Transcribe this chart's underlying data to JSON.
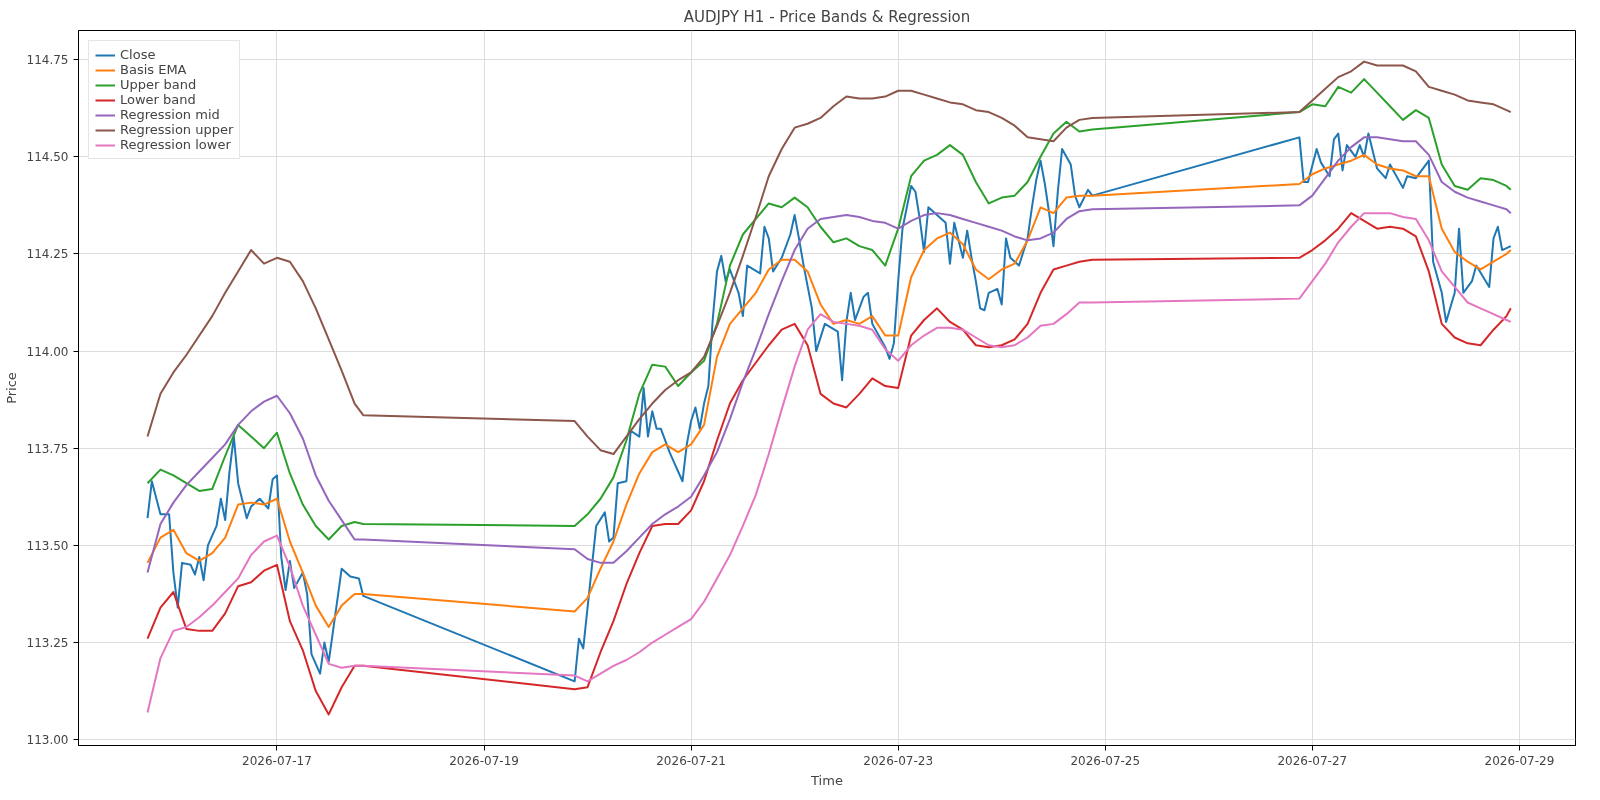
{
  "chart_data": {
    "type": "line",
    "title": "AUDJPY H1 - Price Bands & Regression",
    "xlabel": "Time",
    "ylabel": "Price",
    "xlim": [
      "2026-07-15T02:00",
      "2026-07-29T13:00"
    ],
    "ylim": [
      112.985,
      114.825
    ],
    "xticks": [
      "2026-07-17",
      "2026-07-19",
      "2026-07-21",
      "2026-07-23",
      "2026-07-25",
      "2026-07-27",
      "2026-07-29"
    ],
    "yticks": [
      {
        "value": 113.0,
        "label": "113.00"
      },
      {
        "value": 113.25,
        "label": "113.25"
      },
      {
        "value": 113.5,
        "label": "113.50"
      },
      {
        "value": 113.75,
        "label": "113.75"
      },
      {
        "value": 114.0,
        "label": "114.00"
      },
      {
        "value": 114.25,
        "label": "114.25"
      },
      {
        "value": 114.5,
        "label": "114.50"
      },
      {
        "value": 114.75,
        "label": "114.75"
      }
    ],
    "grid": true,
    "legend": "top left",
    "line_style": "solid",
    "x": [
      "2026-07-15T18:00",
      "2026-07-15T21:00",
      "2026-07-16T00:00",
      "2026-07-16T03:00",
      "2026-07-16T06:00",
      "2026-07-16T09:00",
      "2026-07-16T12:00",
      "2026-07-16T15:00",
      "2026-07-16T18:00",
      "2026-07-16T21:00",
      "2026-07-17T00:00",
      "2026-07-17T03:00",
      "2026-07-17T06:00",
      "2026-07-17T09:00",
      "2026-07-17T12:00",
      "2026-07-17T15:00",
      "2026-07-17T18:00",
      "2026-07-17T20:00",
      "2026-07-19T21:00",
      "2026-07-20T00:00",
      "2026-07-20T03:00",
      "2026-07-20T06:00",
      "2026-07-20T09:00",
      "2026-07-20T12:00",
      "2026-07-20T15:00",
      "2026-07-20T18:00",
      "2026-07-20T21:00",
      "2026-07-21T00:00",
      "2026-07-21T03:00",
      "2026-07-21T06:00",
      "2026-07-21T09:00",
      "2026-07-21T12:00",
      "2026-07-21T15:00",
      "2026-07-21T18:00",
      "2026-07-21T21:00",
      "2026-07-22T00:00",
      "2026-07-22T03:00",
      "2026-07-22T06:00",
      "2026-07-22T09:00",
      "2026-07-22T12:00",
      "2026-07-22T15:00",
      "2026-07-22T18:00",
      "2026-07-22T21:00",
      "2026-07-23T00:00",
      "2026-07-23T03:00",
      "2026-07-23T06:00",
      "2026-07-23T09:00",
      "2026-07-23T12:00",
      "2026-07-23T15:00",
      "2026-07-23T18:00",
      "2026-07-23T21:00",
      "2026-07-24T00:00",
      "2026-07-24T03:00",
      "2026-07-24T06:00",
      "2026-07-24T09:00",
      "2026-07-24T12:00",
      "2026-07-24T15:00",
      "2026-07-24T18:00",
      "2026-07-24T21:00",
      "2026-07-26T21:00",
      "2026-07-27T00:00",
      "2026-07-27T03:00",
      "2026-07-27T06:00",
      "2026-07-27T09:00",
      "2026-07-27T12:00",
      "2026-07-27T15:00",
      "2026-07-27T18:00",
      "2026-07-27T21:00",
      "2026-07-28T00:00",
      "2026-07-28T03:00",
      "2026-07-28T06:00",
      "2026-07-28T09:00",
      "2026-07-28T12:00",
      "2026-07-28T15:00",
      "2026-07-28T18:00",
      "2026-07-28T21:00",
      "2026-07-28T22:00"
    ],
    "series": [
      {
        "name": "Close",
        "color": "#1f77b4",
        "x": [
          "2026-07-15T18:00",
          "2026-07-15T19:00",
          "2026-07-15T21:00",
          "2026-07-15T23:00",
          "2026-07-16T00:00",
          "2026-07-16T01:00",
          "2026-07-16T02:00",
          "2026-07-16T04:00",
          "2026-07-16T05:00",
          "2026-07-16T06:00",
          "2026-07-16T07:00",
          "2026-07-16T08:00",
          "2026-07-16T10:00",
          "2026-07-16T11:00",
          "2026-07-16T12:00",
          "2026-07-16T13:00",
          "2026-07-16T14:00",
          "2026-07-16T15:00",
          "2026-07-16T17:00",
          "2026-07-16T18:00",
          "2026-07-16T20:00",
          "2026-07-16T22:00",
          "2026-07-16T23:00",
          "2026-07-17T00:00",
          "2026-07-17T01:00",
          "2026-07-17T02:00",
          "2026-07-17T03:00",
          "2026-07-17T04:00",
          "2026-07-17T06:00",
          "2026-07-17T07:00",
          "2026-07-17T08:00",
          "2026-07-17T10:00",
          "2026-07-17T11:00",
          "2026-07-17T12:00",
          "2026-07-17T14:00",
          "2026-07-17T15:00",
          "2026-07-17T17:00",
          "2026-07-17T19:00",
          "2026-07-17T20:00",
          "2026-07-19T21:00",
          "2026-07-19T22:00",
          "2026-07-19T23:00",
          "2026-07-20T02:00",
          "2026-07-20T04:00",
          "2026-07-20T05:00",
          "2026-07-20T06:00",
          "2026-07-20T07:00",
          "2026-07-20T09:00",
          "2026-07-20T10:00",
          "2026-07-20T12:00",
          "2026-07-20T13:00",
          "2026-07-20T14:00",
          "2026-07-20T15:00",
          "2026-07-20T16:00",
          "2026-07-20T17:00",
          "2026-07-20T19:00",
          "2026-07-20T20:00",
          "2026-07-20T22:00",
          "2026-07-20T23:00",
          "2026-07-21T00:00",
          "2026-07-21T01:00",
          "2026-07-21T02:00",
          "2026-07-21T03:00",
          "2026-07-21T04:00",
          "2026-07-21T05:00",
          "2026-07-21T06:00",
          "2026-07-21T07:00",
          "2026-07-21T08:00",
          "2026-07-21T09:00",
          "2026-07-21T11:00",
          "2026-07-21T12:00",
          "2026-07-21T13:00",
          "2026-07-21T16:00",
          "2026-07-21T17:00",
          "2026-07-21T18:00",
          "2026-07-21T19:00",
          "2026-07-21T21:00",
          "2026-07-21T23:00",
          "2026-07-22T00:00",
          "2026-07-22T01:00",
          "2026-07-22T02:00",
          "2026-07-22T04:00",
          "2026-07-22T05:00",
          "2026-07-22T07:00",
          "2026-07-22T10:00",
          "2026-07-22T11:00",
          "2026-07-22T12:00",
          "2026-07-22T13:00",
          "2026-07-22T14:00",
          "2026-07-22T16:00",
          "2026-07-22T17:00",
          "2026-07-22T18:00",
          "2026-07-22T21:00",
          "2026-07-22T22:00",
          "2026-07-22T23:00",
          "2026-07-23T00:00",
          "2026-07-23T01:00",
          "2026-07-23T03:00",
          "2026-07-23T04:00",
          "2026-07-23T05:00",
          "2026-07-23T06:00",
          "2026-07-23T07:00",
          "2026-07-23T11:00",
          "2026-07-23T12:00",
          "2026-07-23T13:00",
          "2026-07-23T15:00",
          "2026-07-23T16:00",
          "2026-07-23T17:00",
          "2026-07-23T18:00",
          "2026-07-23T19:00",
          "2026-07-23T20:00",
          "2026-07-23T21:00",
          "2026-07-23T23:00",
          "2026-07-24T00:00",
          "2026-07-24T01:00",
          "2026-07-24T02:00",
          "2026-07-24T04:00",
          "2026-07-24T06:00",
          "2026-07-24T07:00",
          "2026-07-24T08:00",
          "2026-07-24T09:00",
          "2026-07-24T10:00",
          "2026-07-24T11:00",
          "2026-07-24T12:00",
          "2026-07-24T13:00",
          "2026-07-24T14:00",
          "2026-07-24T16:00",
          "2026-07-24T17:00",
          "2026-07-24T18:00",
          "2026-07-24T20:00",
          "2026-07-24T21:00",
          "2026-07-26T21:00",
          "2026-07-26T22:00",
          "2026-07-26T23:00",
          "2026-07-27T01:00",
          "2026-07-27T02:00",
          "2026-07-27T04:00",
          "2026-07-27T05:00",
          "2026-07-27T06:00",
          "2026-07-27T07:00",
          "2026-07-27T08:00",
          "2026-07-27T10:00",
          "2026-07-27T11:00",
          "2026-07-27T12:00",
          "2026-07-27T13:00",
          "2026-07-27T15:00",
          "2026-07-27T17:00",
          "2026-07-27T18:00",
          "2026-07-27T21:00",
          "2026-07-27T22:00",
          "2026-07-28T00:00",
          "2026-07-28T03:00",
          "2026-07-28T04:00",
          "2026-07-28T06:00",
          "2026-07-28T07:00",
          "2026-07-28T09:00",
          "2026-07-28T10:00",
          "2026-07-28T11:00",
          "2026-07-28T13:00",
          "2026-07-28T14:00",
          "2026-07-28T17:00",
          "2026-07-28T18:00",
          "2026-07-28T19:00",
          "2026-07-28T20:00",
          "2026-07-28T22:00"
        ],
        "values": [
          113.57,
          113.665,
          113.58,
          113.58,
          113.43,
          113.34,
          113.455,
          113.45,
          113.425,
          113.47,
          113.41,
          113.5,
          113.55,
          113.62,
          113.565,
          113.69,
          113.78,
          113.66,
          113.57,
          113.6,
          113.62,
          113.595,
          113.67,
          113.68,
          113.47,
          113.385,
          113.46,
          113.39,
          113.43,
          113.375,
          113.22,
          113.17,
          113.25,
          113.2,
          113.36,
          113.44,
          113.42,
          113.415,
          113.37,
          113.15,
          113.26,
          113.235,
          113.55,
          113.585,
          113.51,
          113.52,
          113.66,
          113.665,
          113.795,
          113.78,
          113.905,
          113.78,
          113.845,
          113.8,
          113.8,
          113.74,
          113.715,
          113.665,
          113.76,
          113.82,
          113.855,
          113.8,
          113.865,
          113.91,
          114.08,
          114.205,
          114.245,
          114.18,
          114.21,
          114.15,
          114.09,
          114.22,
          114.2,
          114.32,
          114.29,
          114.205,
          114.24,
          114.3,
          114.35,
          114.29,
          114.225,
          114.11,
          114.0,
          114.07,
          114.05,
          113.925,
          114.075,
          114.15,
          114.08,
          114.14,
          114.15,
          114.07,
          114.01,
          113.98,
          114.02,
          114.18,
          114.315,
          114.425,
          114.41,
          114.34,
          114.255,
          114.37,
          114.33,
          114.225,
          114.33,
          114.24,
          114.31,
          114.24,
          114.18,
          114.11,
          114.105,
          114.15,
          114.16,
          114.12,
          114.29,
          114.24,
          114.22,
          114.29,
          114.37,
          114.44,
          114.49,
          114.43,
          114.355,
          114.27,
          114.41,
          114.52,
          114.48,
          114.4,
          114.37,
          114.415,
          114.4,
          114.55,
          114.435,
          114.435,
          114.52,
          114.485,
          114.45,
          114.545,
          114.56,
          114.465,
          114.53,
          114.5,
          114.53,
          114.5,
          114.56,
          114.47,
          114.445,
          114.48,
          114.42,
          114.45,
          114.445,
          114.49,
          114.23,
          114.15,
          114.075,
          114.15,
          114.315,
          114.15,
          114.18,
          114.22,
          114.165,
          114.29,
          114.32,
          114.26,
          114.27
        ]
      },
      {
        "name": "Basis EMA",
        "color": "#ff7f0e",
        "values": [
          113.455,
          113.52,
          113.54,
          113.48,
          113.46,
          113.48,
          113.52,
          113.605,
          113.61,
          113.605,
          113.62,
          113.51,
          113.43,
          113.345,
          113.29,
          113.345,
          113.375,
          113.375,
          113.33,
          113.365,
          113.44,
          113.51,
          113.605,
          113.685,
          113.74,
          113.76,
          113.74,
          113.76,
          113.81,
          113.985,
          114.07,
          114.11,
          114.15,
          114.21,
          114.235,
          114.235,
          114.205,
          114.12,
          114.07,
          114.08,
          114.07,
          114.09,
          114.04,
          114.04,
          114.19,
          114.26,
          114.29,
          114.305,
          114.275,
          114.21,
          114.185,
          114.21,
          114.225,
          114.285,
          114.37,
          114.355,
          114.395,
          114.4,
          114.4,
          114.43,
          114.455,
          114.47,
          114.48,
          114.49,
          114.505,
          114.48,
          114.47,
          114.465,
          114.45,
          114.45,
          114.315,
          114.255,
          114.23,
          114.21,
          114.23,
          114.25,
          114.26
        ]
      },
      {
        "name": "Upper band",
        "color": "#2ca02c",
        "values": [
          113.66,
          113.695,
          113.68,
          113.66,
          113.64,
          113.645,
          113.73,
          113.81,
          113.78,
          113.75,
          113.79,
          113.685,
          113.605,
          113.55,
          113.515,
          113.55,
          113.56,
          113.555,
          113.55,
          113.58,
          113.62,
          113.675,
          113.77,
          113.89,
          113.965,
          113.96,
          113.91,
          113.945,
          113.975,
          114.07,
          114.22,
          114.3,
          114.34,
          114.38,
          114.37,
          114.395,
          114.37,
          114.32,
          114.28,
          114.29,
          114.27,
          114.26,
          114.22,
          114.315,
          114.45,
          114.49,
          114.505,
          114.53,
          114.505,
          114.435,
          114.38,
          114.395,
          114.4,
          114.435,
          114.5,
          114.56,
          114.59,
          114.565,
          114.57,
          114.615,
          114.635,
          114.63,
          114.68,
          114.665,
          114.7,
          114.665,
          114.63,
          114.595,
          114.62,
          114.6,
          114.48,
          114.425,
          114.415,
          114.445,
          114.44,
          114.425,
          114.415
        ]
      },
      {
        "name": "Lower band",
        "color": "#d62728",
        "values": [
          113.26,
          113.34,
          113.38,
          113.285,
          113.28,
          113.28,
          113.325,
          113.395,
          113.405,
          113.435,
          113.45,
          113.305,
          113.23,
          113.125,
          113.065,
          113.135,
          113.19,
          113.19,
          113.13,
          113.135,
          113.225,
          113.305,
          113.4,
          113.48,
          113.55,
          113.555,
          113.555,
          113.59,
          113.665,
          113.77,
          113.865,
          113.925,
          113.97,
          114.015,
          114.055,
          114.07,
          114.015,
          113.89,
          113.865,
          113.855,
          113.89,
          113.93,
          113.91,
          113.905,
          114.04,
          114.08,
          114.11,
          114.075,
          114.055,
          114.015,
          114.01,
          114.015,
          114.03,
          114.07,
          114.15,
          114.21,
          114.22,
          114.23,
          114.235,
          114.24,
          114.26,
          114.285,
          114.315,
          114.355,
          114.335,
          114.315,
          114.32,
          114.315,
          114.295,
          114.205,
          114.07,
          114.035,
          114.02,
          114.015,
          114.055,
          114.09,
          114.11
        ]
      },
      {
        "name": "Regression mid",
        "color": "#9467bd",
        "values": [
          113.43,
          113.555,
          113.61,
          113.655,
          113.69,
          113.725,
          113.76,
          113.81,
          113.845,
          113.87,
          113.885,
          113.84,
          113.775,
          113.68,
          113.615,
          113.565,
          113.515,
          113.515,
          113.49,
          113.465,
          113.455,
          113.455,
          113.485,
          113.52,
          113.555,
          113.58,
          113.6,
          113.625,
          113.68,
          113.74,
          113.825,
          113.92,
          114.005,
          114.095,
          114.18,
          114.26,
          114.315,
          114.34,
          114.345,
          114.35,
          114.345,
          114.335,
          114.33,
          114.315,
          114.335,
          114.35,
          114.355,
          114.35,
          114.34,
          114.33,
          114.32,
          114.31,
          114.295,
          114.285,
          114.29,
          114.305,
          114.34,
          114.36,
          114.365,
          114.375,
          114.4,
          114.445,
          114.49,
          114.525,
          114.55,
          114.55,
          114.545,
          114.54,
          114.54,
          114.505,
          114.435,
          114.41,
          114.395,
          114.385,
          114.375,
          114.365,
          114.355
        ]
      },
      {
        "name": "Regression upper",
        "color": "#8c564b",
        "values": [
          113.78,
          113.89,
          113.945,
          113.99,
          114.04,
          114.09,
          114.15,
          114.205,
          114.26,
          114.225,
          114.24,
          114.23,
          114.18,
          114.11,
          114.03,
          113.95,
          113.865,
          113.835,
          113.82,
          113.78,
          113.745,
          113.735,
          113.78,
          113.825,
          113.865,
          113.9,
          113.925,
          113.945,
          113.985,
          114.065,
          114.15,
          114.245,
          114.345,
          114.45,
          114.52,
          114.575,
          114.585,
          114.6,
          114.63,
          114.655,
          114.65,
          114.65,
          114.655,
          114.67,
          114.67,
          114.66,
          114.65,
          114.64,
          114.635,
          114.62,
          114.615,
          114.6,
          114.58,
          114.55,
          114.545,
          114.54,
          114.575,
          114.595,
          114.6,
          114.615,
          114.645,
          114.675,
          114.705,
          114.72,
          114.745,
          114.735,
          114.735,
          114.735,
          114.72,
          114.68,
          114.67,
          114.66,
          114.645,
          114.64,
          114.635,
          114.62,
          114.615
        ]
      },
      {
        "name": "Regression lower",
        "color": "#e377c2",
        "values": [
          113.07,
          113.21,
          113.28,
          113.29,
          113.315,
          113.345,
          113.38,
          113.415,
          113.475,
          113.51,
          113.525,
          113.445,
          113.345,
          113.27,
          113.195,
          113.185,
          113.19,
          113.19,
          113.165,
          113.15,
          113.17,
          113.19,
          113.205,
          113.225,
          113.25,
          113.27,
          113.29,
          113.31,
          113.355,
          113.415,
          113.475,
          113.55,
          113.63,
          113.735,
          113.85,
          113.96,
          114.055,
          114.095,
          114.075,
          114.07,
          114.065,
          114.055,
          114.005,
          113.975,
          114.015,
          114.04,
          114.06,
          114.06,
          114.055,
          114.035,
          114.015,
          114.01,
          114.015,
          114.035,
          114.065,
          114.07,
          114.095,
          114.125,
          114.125,
          114.135,
          114.18,
          114.225,
          114.28,
          114.32,
          114.355,
          114.355,
          114.355,
          114.345,
          114.34,
          114.285,
          114.205,
          114.165,
          114.125,
          114.11,
          114.095,
          114.08,
          114.075
        ]
      }
    ]
  }
}
